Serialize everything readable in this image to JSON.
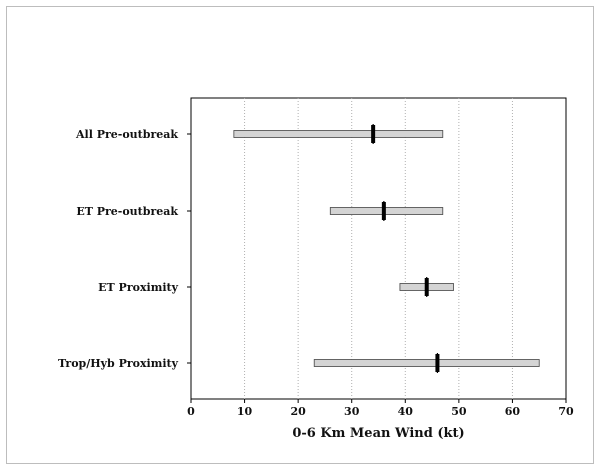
{
  "chart_data": {
    "type": "bar",
    "orientation": "horizontal",
    "style": "floating-range",
    "categories": [
      "All Pre-outbreak",
      "ET Pre-outbreak",
      "ET Proximity",
      "Trop/Hyb Proximity"
    ],
    "series": [
      {
        "min": [
          8,
          26,
          39,
          23
        ],
        "max": [
          47,
          47,
          49,
          65
        ],
        "marker": [
          34,
          36,
          44,
          46
        ]
      }
    ],
    "xlabel": "0-6 Km Mean Wind (kt)",
    "xlim": [
      0,
      70
    ],
    "xticks": [
      0,
      10,
      20,
      30,
      40,
      50,
      60,
      70
    ],
    "grid": "vertical-dotted",
    "colors": {
      "bar_fill": "#d4d4d4",
      "bar_stroke": "#444444",
      "marker": "#000000",
      "grid": "#b0b0b0",
      "axis": "#000000"
    }
  }
}
